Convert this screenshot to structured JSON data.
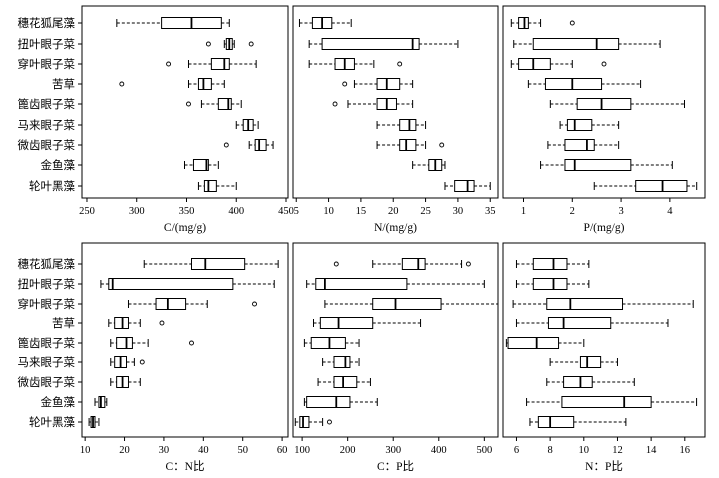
{
  "chart_data": [
    {
      "type": "boxplot",
      "xlabel": "C/(mg/g)",
      "xlim": [
        245,
        452
      ],
      "xticks": [
        250,
        300,
        350,
        400,
        450
      ],
      "categories": [
        "穗花狐尾藻",
        "扭叶眼子菜",
        "穿叶眼子菜",
        "苦草",
        "篦齿眼子菜",
        "马来眼子菜",
        "微齿眼子菜",
        "金鱼藻",
        "轮叶黑藻"
      ],
      "boxes": [
        {
          "whislo": 280,
          "q1": 325,
          "med": 355,
          "q3": 385,
          "whishi": 393,
          "fliers": []
        },
        {
          "whislo": 388,
          "q1": 390,
          "med": 393,
          "q3": 396,
          "whishi": 398,
          "fliers": [
            372,
            415
          ]
        },
        {
          "whislo": 352,
          "q1": 375,
          "med": 388,
          "q3": 393,
          "whishi": 420,
          "fliers": [
            332
          ]
        },
        {
          "whislo": 352,
          "q1": 362,
          "med": 367,
          "q3": 375,
          "whishi": 388,
          "fliers": [
            285
          ]
        },
        {
          "whislo": 365,
          "q1": 382,
          "med": 392,
          "q3": 395,
          "whishi": 405,
          "fliers": [
            352
          ]
        },
        {
          "whislo": 400,
          "q1": 407,
          "med": 412,
          "q3": 417,
          "whishi": 422,
          "fliers": []
        },
        {
          "whislo": 413,
          "q1": 419,
          "med": 423,
          "q3": 430,
          "whishi": 437,
          "fliers": [
            390
          ]
        },
        {
          "whislo": 348,
          "q1": 357,
          "med": 370,
          "q3": 372,
          "whishi": 382,
          "fliers": []
        },
        {
          "whislo": 362,
          "q1": 368,
          "med": 372,
          "q3": 380,
          "whishi": 400,
          "fliers": []
        }
      ]
    },
    {
      "type": "boxplot",
      "xlabel": "N/(mg/g)",
      "xlim": [
        4.5,
        36.2
      ],
      "xticks": [
        5,
        10,
        15,
        20,
        25,
        30,
        35
      ],
      "categories": [
        "穗花狐尾藻",
        "扭叶眼子菜",
        "穿叶眼子菜",
        "苦草",
        "篦齿眼子菜",
        "马来眼子菜",
        "微齿眼子菜",
        "金鱼藻",
        "轮叶黑藻"
      ],
      "boxes": [
        {
          "whislo": 5.5,
          "q1": 7.5,
          "med": 9,
          "q3": 10.5,
          "whishi": 13.5,
          "fliers": []
        },
        {
          "whislo": 7,
          "q1": 9,
          "med": 23,
          "q3": 24,
          "whishi": 30,
          "fliers": []
        },
        {
          "whislo": 7,
          "q1": 11,
          "med": 12.5,
          "q3": 14,
          "whishi": 17,
          "fliers": [
            21
          ]
        },
        {
          "whislo": 14,
          "q1": 17.5,
          "med": 19,
          "q3": 21,
          "whishi": 23,
          "fliers": [
            12.5
          ]
        },
        {
          "whislo": 13,
          "q1": 17.5,
          "med": 19,
          "q3": 20.5,
          "whishi": 23,
          "fliers": [
            11
          ]
        },
        {
          "whislo": 17.5,
          "q1": 21,
          "med": 22.5,
          "q3": 23.5,
          "whishi": 25,
          "fliers": []
        },
        {
          "whislo": 17.5,
          "q1": 21,
          "med": 22,
          "q3": 23.5,
          "whishi": 25,
          "fliers": [
            27.5
          ]
        },
        {
          "whislo": 23,
          "q1": 25.5,
          "med": 26.5,
          "q3": 27.5,
          "whishi": 28,
          "fliers": []
        },
        {
          "whislo": 28,
          "q1": 29.5,
          "med": 31.5,
          "q3": 32.5,
          "whishi": 35,
          "fliers": []
        }
      ]
    },
    {
      "type": "boxplot",
      "xlabel": "P/(mg/g)",
      "xlim": [
        0.58,
        4.72
      ],
      "xticks": [
        1,
        2,
        3,
        4
      ],
      "categories": [
        "穗花狐尾藻",
        "扭叶眼子菜",
        "穿叶眼子菜",
        "苦草",
        "篦齿眼子菜",
        "马来眼子菜",
        "微齿眼子菜",
        "金鱼藻",
        "轮叶黑藻"
      ],
      "boxes": [
        {
          "whislo": 0.75,
          "q1": 0.9,
          "med": 1.02,
          "q3": 1.1,
          "whishi": 1.35,
          "fliers": [
            2
          ]
        },
        {
          "whislo": 0.8,
          "q1": 1.2,
          "med": 2.5,
          "q3": 2.95,
          "whishi": 3.8,
          "fliers": []
        },
        {
          "whislo": 0.75,
          "q1": 0.9,
          "med": 1.2,
          "q3": 1.55,
          "whishi": 2,
          "fliers": [
            2.65
          ]
        },
        {
          "whislo": 1.1,
          "q1": 1.45,
          "med": 2,
          "q3": 2.6,
          "whishi": 3.4,
          "fliers": []
        },
        {
          "whislo": 1.55,
          "q1": 2.1,
          "med": 2.6,
          "q3": 3.2,
          "whishi": 4.3,
          "fliers": []
        },
        {
          "whislo": 1.75,
          "q1": 1.9,
          "med": 2.05,
          "q3": 2.4,
          "whishi": 2.95,
          "fliers": []
        },
        {
          "whislo": 1.5,
          "q1": 1.85,
          "med": 2.3,
          "q3": 2.45,
          "whishi": 2.95,
          "fliers": []
        },
        {
          "whislo": 1.35,
          "q1": 1.85,
          "med": 2.05,
          "q3": 3.2,
          "whishi": 4.05,
          "fliers": []
        },
        {
          "whislo": 2.45,
          "q1": 3.3,
          "med": 3.85,
          "q3": 4.35,
          "whishi": 4.55,
          "fliers": []
        }
      ]
    },
    {
      "type": "boxplot",
      "xlabel": "C：N比",
      "xlim": [
        9.2,
        61.5
      ],
      "xticks": [
        10,
        20,
        30,
        40,
        50,
        60
      ],
      "categories": [
        "穗花狐尾藻",
        "扭叶眼子菜",
        "穿叶眼子菜",
        "苦草",
        "篦齿眼子菜",
        "马来眼子菜",
        "微齿眼子菜",
        "金鱼藻",
        "轮叶黑藻"
      ],
      "boxes": [
        {
          "whislo": 25,
          "q1": 37,
          "med": 40.5,
          "q3": 50.5,
          "whishi": 59,
          "fliers": []
        },
        {
          "whislo": 14,
          "q1": 16,
          "med": 17,
          "q3": 47.5,
          "whishi": 58,
          "fliers": []
        },
        {
          "whislo": 21,
          "q1": 28,
          "med": 31,
          "q3": 35.5,
          "whishi": 41,
          "fliers": [
            53
          ]
        },
        {
          "whislo": 16,
          "q1": 17.5,
          "med": 19.5,
          "q3": 21,
          "whishi": 24,
          "fliers": [
            29.5
          ]
        },
        {
          "whislo": 16.5,
          "q1": 18,
          "med": 20.5,
          "q3": 22,
          "whishi": 26,
          "fliers": [
            37
          ]
        },
        {
          "whislo": 16.5,
          "q1": 17.5,
          "med": 19,
          "q3": 20.5,
          "whishi": 22.5,
          "fliers": [
            24.5
          ]
        },
        {
          "whislo": 16.5,
          "q1": 18,
          "med": 19.5,
          "q3": 21,
          "whishi": 24,
          "fliers": []
        },
        {
          "whislo": 12.5,
          "q1": 13.5,
          "med": 14,
          "q3": 15,
          "whishi": 15.5,
          "fliers": []
        },
        {
          "whislo": 11,
          "q1": 11.5,
          "med": 12,
          "q3": 12.5,
          "whishi": 13.5,
          "fliers": []
        }
      ]
    },
    {
      "type": "boxplot",
      "xlabel": "C：P比",
      "xlim": [
        80,
        530
      ],
      "xticks": [
        100,
        200,
        300,
        400,
        500
      ],
      "categories": [
        "穗花狐尾藻",
        "扭叶眼子菜",
        "穿叶眼子菜",
        "苦草",
        "篦齿眼子菜",
        "马来眼子菜",
        "微齿眼子菜",
        "金鱼藻",
        "轮叶黑藻"
      ],
      "boxes": [
        {
          "whislo": 255,
          "q1": 320,
          "med": 355,
          "q3": 370,
          "whishi": 450,
          "fliers": [
            175,
            465
          ]
        },
        {
          "whislo": 110,
          "q1": 130,
          "med": 150,
          "q3": 330,
          "whishi": 500,
          "fliers": []
        },
        {
          "whislo": 150,
          "q1": 255,
          "med": 305,
          "q3": 405,
          "whishi": 530,
          "fliers": []
        },
        {
          "whislo": 125,
          "q1": 140,
          "med": 180,
          "q3": 255,
          "whishi": 360,
          "fliers": []
        },
        {
          "whislo": 105,
          "q1": 120,
          "med": 160,
          "q3": 195,
          "whishi": 225,
          "fliers": []
        },
        {
          "whislo": 145,
          "q1": 170,
          "med": 195,
          "q3": 205,
          "whishi": 225,
          "fliers": []
        },
        {
          "whislo": 135,
          "q1": 170,
          "med": 190,
          "q3": 220,
          "whishi": 250,
          "fliers": []
        },
        {
          "whislo": 105,
          "q1": 110,
          "med": 175,
          "q3": 205,
          "whishi": 265,
          "fliers": []
        },
        {
          "whislo": 85,
          "q1": 95,
          "med": 102,
          "q3": 115,
          "whishi": 145,
          "fliers": [
            160
          ]
        }
      ]
    },
    {
      "type": "boxplot",
      "xlabel": "N：P比",
      "xlim": [
        5.2,
        17.2
      ],
      "xticks": [
        6,
        8,
        10,
        12,
        14,
        16
      ],
      "categories": [
        "穗花狐尾藻",
        "扭叶眼子菜",
        "穿叶眼子菜",
        "苦草",
        "篦齿眼子菜",
        "马来眼子菜",
        "微齿眼子菜",
        "金鱼藻",
        "轮叶黑藻"
      ],
      "boxes": [
        {
          "whislo": 6,
          "q1": 7,
          "med": 8.2,
          "q3": 9,
          "whishi": 10.3,
          "fliers": []
        },
        {
          "whislo": 6,
          "q1": 7,
          "med": 8.2,
          "q3": 9,
          "whishi": 10.3,
          "fliers": []
        },
        {
          "whislo": 5.8,
          "q1": 7.8,
          "med": 9.2,
          "q3": 12.3,
          "whishi": 16.5,
          "fliers": []
        },
        {
          "whislo": 6,
          "q1": 7.9,
          "med": 8.8,
          "q3": 11.6,
          "whishi": 15,
          "fliers": []
        },
        {
          "whislo": 5.4,
          "q1": 5.5,
          "med": 7.2,
          "q3": 8.5,
          "whishi": 10,
          "fliers": []
        },
        {
          "whislo": 8,
          "q1": 9.8,
          "med": 10.2,
          "q3": 11,
          "whishi": 12,
          "fliers": []
        },
        {
          "whislo": 7.8,
          "q1": 8.8,
          "med": 9.8,
          "q3": 10.5,
          "whishi": 13,
          "fliers": []
        },
        {
          "whislo": 6.6,
          "q1": 8.7,
          "med": 12.4,
          "q3": 14,
          "whishi": 16.7,
          "fliers": []
        },
        {
          "whislo": 6.8,
          "q1": 7.3,
          "med": 8,
          "q3": 9.4,
          "whishi": 12.5,
          "fliers": []
        }
      ]
    }
  ]
}
